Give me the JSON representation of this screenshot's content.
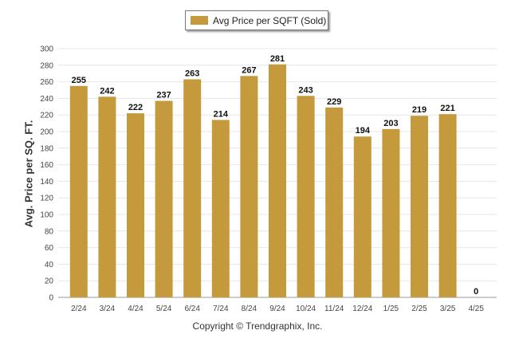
{
  "legend": {
    "label": "Avg Price per SQFT (Sold)"
  },
  "copyright": "Copyright © Trendgraphix, Inc.",
  "colors": {
    "bar": "#c49a3c",
    "grid": "#e6e6e6",
    "axis": "#999999"
  },
  "chart_data": {
    "type": "bar",
    "categories": [
      "2/24",
      "3/24",
      "4/24",
      "5/24",
      "6/24",
      "7/24",
      "8/24",
      "9/24",
      "10/24",
      "11/24",
      "12/24",
      "1/25",
      "2/25",
      "3/25",
      "4/25"
    ],
    "series": [
      {
        "name": "Avg Price per SQFT (Sold)",
        "values": [
          255,
          242,
          222,
          237,
          263,
          214,
          267,
          281,
          243,
          229,
          194,
          203,
          219,
          221,
          0
        ]
      }
    ],
    "ylabel": "Avg. Price per SQ. FT.",
    "xlabel": "",
    "ylim": [
      0,
      300
    ],
    "yticks": [
      0,
      20,
      40,
      60,
      80,
      100,
      120,
      140,
      160,
      180,
      200,
      220,
      240,
      260,
      280,
      300
    ],
    "grid": true,
    "legend_position": "top-center",
    "data_labels": true
  }
}
